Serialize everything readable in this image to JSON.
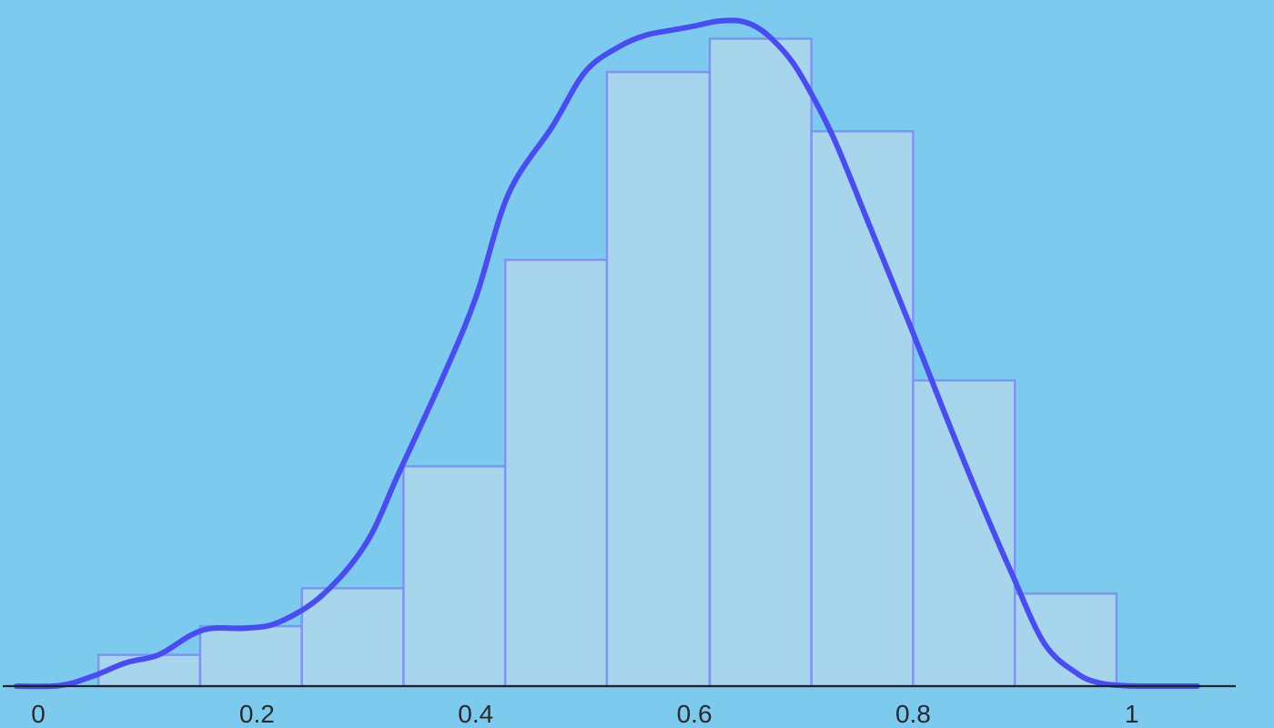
{
  "chart_data": {
    "type": "bar",
    "subtype": "histogram-with-density",
    "title": "",
    "xlabel": "",
    "ylabel": "",
    "xlim": [
      -0.035,
      1.13
    ],
    "ylim": [
      0,
      1.0
    ],
    "grid": false,
    "x_ticks": [
      {
        "value": 0,
        "label": "0"
      },
      {
        "value": 0.2,
        "label": "0.2"
      },
      {
        "value": 0.4,
        "label": "0.4"
      },
      {
        "value": 0.6,
        "label": "0.6"
      },
      {
        "value": 0.8,
        "label": "0.8"
      },
      {
        "value": 1.0,
        "label": "1"
      }
    ],
    "bins": [
      {
        "start": 0.055,
        "end": 0.148,
        "value": 0.047
      },
      {
        "start": 0.148,
        "end": 0.241,
        "value": 0.09
      },
      {
        "start": 0.241,
        "end": 0.334,
        "value": 0.147
      },
      {
        "start": 0.334,
        "end": 0.427,
        "value": 0.33
      },
      {
        "start": 0.427,
        "end": 0.52,
        "value": 0.64
      },
      {
        "start": 0.52,
        "end": 0.614,
        "value": 0.922
      },
      {
        "start": 0.614,
        "end": 0.707,
        "value": 0.972
      },
      {
        "start": 0.707,
        "end": 0.8,
        "value": 0.833
      },
      {
        "start": 0.8,
        "end": 0.893,
        "value": 0.459
      },
      {
        "start": 0.893,
        "end": 0.986,
        "value": 0.139
      }
    ],
    "density_curve": {
      "x": [
        -0.02,
        0.02,
        0.05,
        0.08,
        0.11,
        0.14,
        0.16,
        0.19,
        0.22,
        0.26,
        0.3,
        0.33,
        0.37,
        0.4,
        0.43,
        0.47,
        0.5,
        0.53,
        0.555,
        0.58,
        0.6,
        0.62,
        0.64,
        0.655,
        0.67,
        0.69,
        0.71,
        0.73,
        0.76,
        0.8,
        0.83,
        0.86,
        0.89,
        0.92,
        0.95,
        0.97,
        0.99,
        1.01,
        1.04,
        1.06
      ],
      "y": [
        0.0,
        0.001,
        0.015,
        0.035,
        0.047,
        0.077,
        0.087,
        0.087,
        0.096,
        0.137,
        0.215,
        0.321,
        0.464,
        0.583,
        0.739,
        0.84,
        0.922,
        0.959,
        0.977,
        0.985,
        0.991,
        0.998,
        0.999,
        0.991,
        0.973,
        0.936,
        0.88,
        0.813,
        0.692,
        0.53,
        0.405,
        0.284,
        0.17,
        0.064,
        0.019,
        0.005,
        0.001,
        0.0,
        0.0,
        0.0
      ]
    },
    "colors": {
      "background": "#7ccbef",
      "bar_fill": "#a6d5ec",
      "bar_stroke": "#7f93f2",
      "curve": "#4a4cf3",
      "axis": "#222222",
      "tick_text": "#2a2a2a"
    }
  }
}
